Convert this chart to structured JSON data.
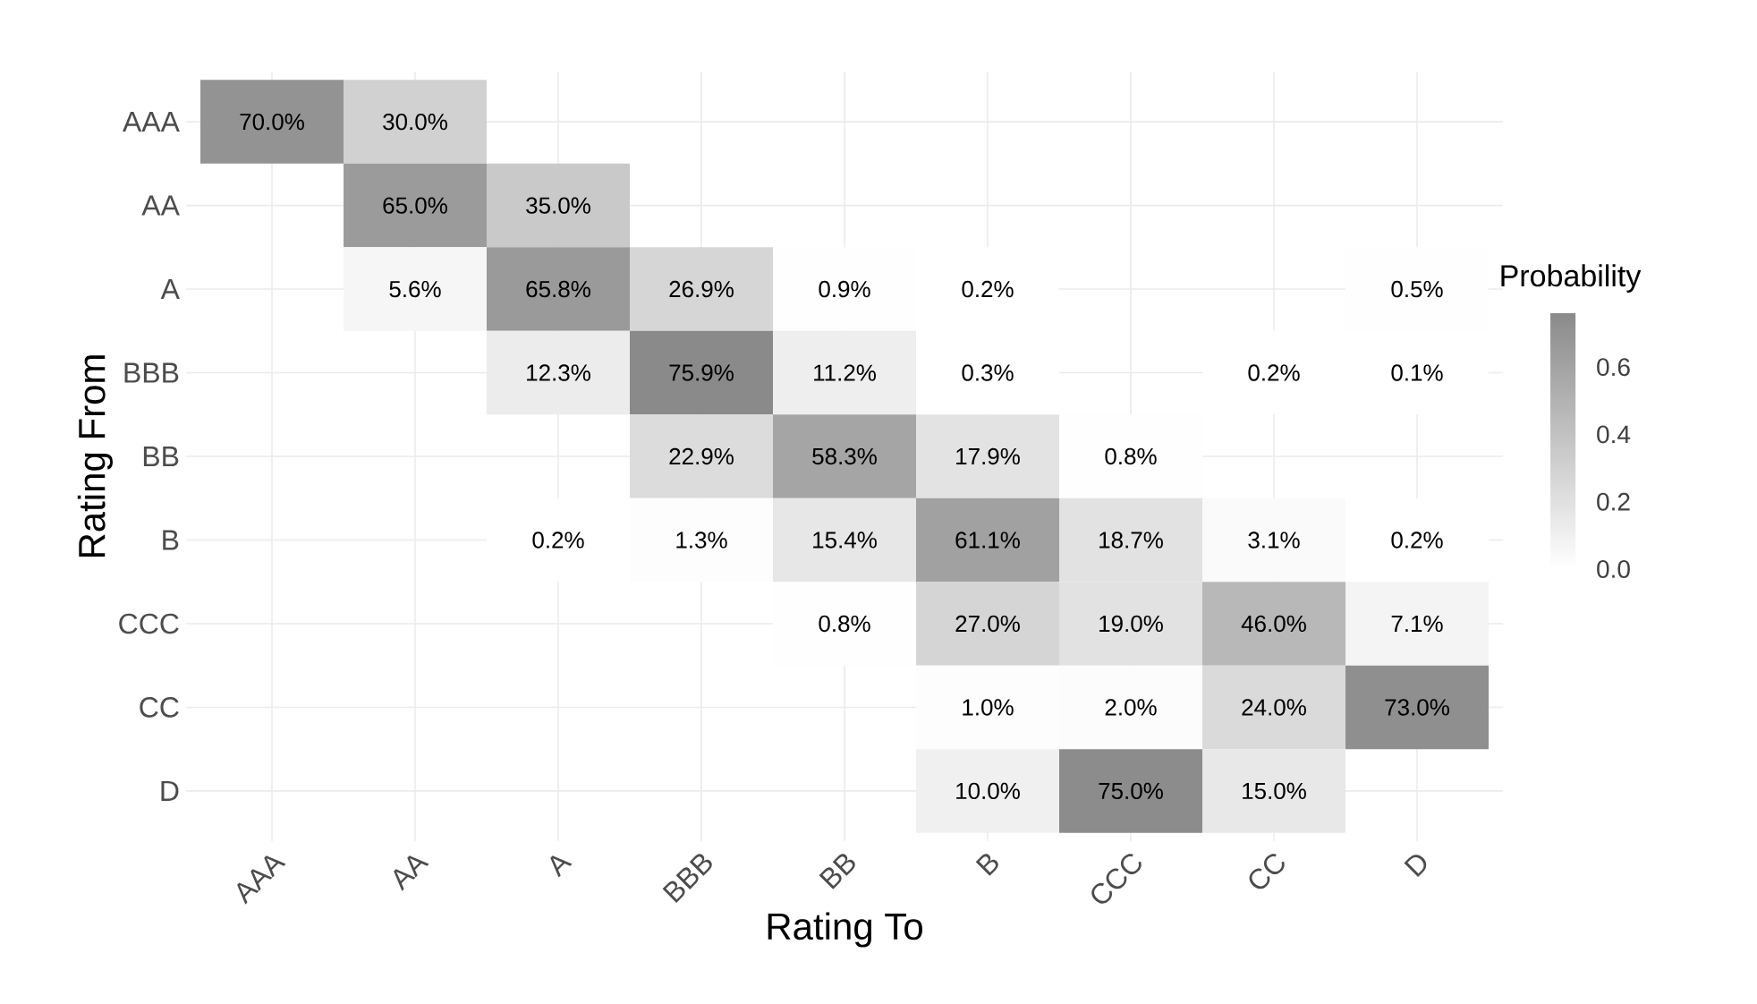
{
  "chart_data": {
    "type": "heatmap",
    "xlabel": "Rating To",
    "ylabel": "Rating From",
    "clabel": "Probability",
    "categories": [
      "AAA",
      "AA",
      "A",
      "BBB",
      "BB",
      "B",
      "CCC",
      "CC",
      "D"
    ],
    "y_categories": [
      "AAA",
      "AA",
      "A",
      "BBB",
      "BB",
      "B",
      "CCC",
      "CC",
      "D"
    ],
    "cells": [
      [
        0.7,
        0.3,
        null,
        null,
        null,
        null,
        null,
        null,
        null
      ],
      [
        null,
        0.65,
        0.35,
        null,
        null,
        null,
        null,
        null,
        null
      ],
      [
        null,
        0.056,
        0.658,
        0.269,
        0.009,
        0.002,
        null,
        null,
        0.005
      ],
      [
        null,
        null,
        0.123,
        0.759,
        0.112,
        0.003,
        null,
        0.002,
        0.001
      ],
      [
        null,
        null,
        null,
        0.229,
        0.583,
        0.179,
        0.008,
        null,
        null
      ],
      [
        null,
        null,
        0.002,
        0.013,
        0.154,
        0.611,
        0.187,
        0.031,
        0.002
      ],
      [
        null,
        null,
        null,
        null,
        0.008,
        0.27,
        0.19,
        0.46,
        0.071
      ],
      [
        null,
        null,
        null,
        null,
        null,
        0.01,
        0.02,
        0.24,
        0.73
      ],
      [
        null,
        null,
        null,
        null,
        null,
        0.1,
        0.75,
        0.15,
        null
      ]
    ],
    "cell_labels": [
      [
        "70.0%",
        "30.0%",
        null,
        null,
        null,
        null,
        null,
        null,
        null
      ],
      [
        null,
        "65.0%",
        "35.0%",
        null,
        null,
        null,
        null,
        null,
        null
      ],
      [
        null,
        "5.6%",
        "65.8%",
        "26.9%",
        "0.9%",
        "0.2%",
        null,
        null,
        "0.5%"
      ],
      [
        null,
        null,
        "12.3%",
        "75.9%",
        "11.2%",
        "0.3%",
        null,
        "0.2%",
        "0.1%"
      ],
      [
        null,
        null,
        null,
        "22.9%",
        "58.3%",
        "17.9%",
        "0.8%",
        null,
        null
      ],
      [
        null,
        null,
        "0.2%",
        "1.3%",
        "15.4%",
        "61.1%",
        "18.7%",
        "3.1%",
        "0.2%"
      ],
      [
        null,
        null,
        null,
        null,
        "0.8%",
        "27.0%",
        "19.0%",
        "46.0%",
        "7.1%"
      ],
      [
        null,
        null,
        null,
        null,
        null,
        "1.0%",
        "2.0%",
        "24.0%",
        "73.0%"
      ],
      [
        null,
        null,
        null,
        null,
        null,
        "10.0%",
        "75.0%",
        "15.0%",
        null
      ]
    ],
    "clim": [
      0,
      0.76
    ],
    "cticks": [
      {
        "value": 0,
        "label": "0.0"
      },
      {
        "value": 0.2,
        "label": "0.2"
      },
      {
        "value": 0.4,
        "label": "0.4"
      },
      {
        "value": 0.6,
        "label": "0.6"
      }
    ],
    "grid": true
  }
}
